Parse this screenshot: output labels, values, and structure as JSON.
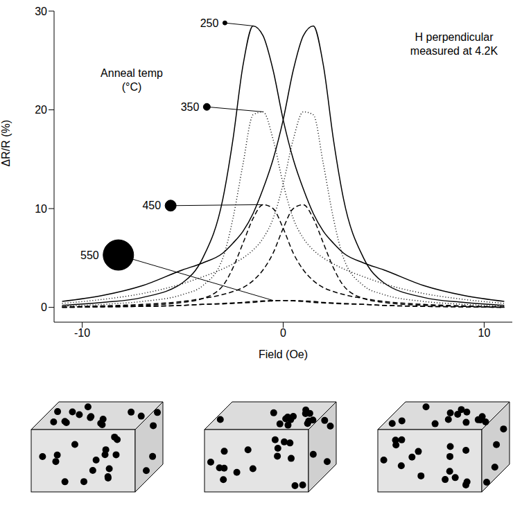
{
  "chart_data": {
    "type": "line",
    "x_label": "Field (Oe)",
    "y_label": "ΔR/R (%)",
    "annotations": [
      "H perpendicular",
      "measured at 4.2K",
      "Anneal temp",
      "(°C)"
    ],
    "xlim": [
      -11.4,
      11.4
    ],
    "ylim": [
      -1.5,
      30
    ],
    "xticks": [
      -10,
      0,
      10
    ],
    "yticks": [
      0,
      10,
      20,
      30
    ],
    "x": [
      -11,
      -9,
      -7,
      -5,
      -4,
      -3,
      -2.5,
      -2,
      -1.5,
      -1,
      -0.5,
      0,
      0.5,
      1,
      1.5,
      2,
      2.5,
      3,
      4,
      5,
      7,
      9,
      11
    ],
    "series": [
      {
        "name": "250",
        "color": "#000000",
        "line_style": "solid",
        "values": [
          0.2,
          0.5,
          1.0,
          2.5,
          5,
          11,
          17,
          24.5,
          28.5,
          27.5,
          24,
          19,
          15,
          12,
          9.5,
          7.7,
          6.5,
          5.5,
          4.5,
          3.8,
          2.2,
          1.2,
          0.6
        ]
      },
      {
        "name": "250",
        "color": "#000000",
        "line_style": "solid",
        "values": [
          0.6,
          1.2,
          2.2,
          3.8,
          4.5,
          5.5,
          6.5,
          7.7,
          9.5,
          12,
          15,
          19,
          24,
          27.5,
          28.5,
          24.5,
          17,
          11,
          5,
          2.5,
          1.0,
          0.5,
          0.2
        ]
      },
      {
        "name": "350",
        "color": "#000000",
        "line_style": "dotted",
        "values": [
          0.1,
          0.3,
          0.6,
          1.3,
          2.2,
          5,
          9,
          14.5,
          19.5,
          19.8,
          17,
          12.5,
          9,
          7,
          5.8,
          5,
          4.4,
          3.9,
          3.1,
          2.4,
          1.4,
          0.8,
          0.4
        ]
      },
      {
        "name": "350",
        "color": "#000000",
        "line_style": "dotted",
        "values": [
          0.4,
          0.8,
          1.4,
          2.4,
          3.1,
          3.9,
          4.4,
          5,
          5.8,
          7,
          9,
          12.5,
          17,
          19.8,
          19.5,
          14.5,
          9,
          5,
          2.2,
          1.3,
          0.6,
          0.3,
          0.1
        ]
      },
      {
        "name": "450",
        "color": "#000000",
        "line_style": "dashed",
        "values": [
          0,
          0.1,
          0.2,
          0.5,
          0.9,
          2.2,
          4,
          6.5,
          9,
          10.4,
          10,
          8,
          5.5,
          3.8,
          2.7,
          2,
          1.6,
          1.3,
          0.9,
          0.6,
          0.3,
          0.15,
          0.05
        ]
      },
      {
        "name": "450",
        "color": "#000000",
        "line_style": "dashed",
        "values": [
          0.05,
          0.15,
          0.3,
          0.6,
          0.9,
          1.3,
          1.6,
          2,
          2.7,
          3.8,
          5.5,
          8,
          10,
          10.4,
          9,
          6.5,
          4,
          2.2,
          0.9,
          0.5,
          0.2,
          0.1,
          0
        ]
      },
      {
        "name": "550",
        "color": "#000000",
        "line_style": "dashed",
        "values": [
          0,
          0.05,
          0.1,
          0.2,
          0.3,
          0.4,
          0.45,
          0.5,
          0.6,
          0.65,
          0.7,
          0.7,
          0.65,
          0.6,
          0.5,
          0.45,
          0.4,
          0.35,
          0.3,
          0.2,
          0.1,
          0.05,
          0
        ]
      },
      {
        "name": "550",
        "color": "#000000",
        "line_style": "dashed",
        "values": [
          0,
          0.05,
          0.1,
          0.2,
          0.3,
          0.35,
          0.4,
          0.45,
          0.5,
          0.6,
          0.65,
          0.7,
          0.7,
          0.65,
          0.6,
          0.5,
          0.45,
          0.4,
          0.3,
          0.2,
          0.1,
          0.05,
          0
        ]
      }
    ]
  }
}
